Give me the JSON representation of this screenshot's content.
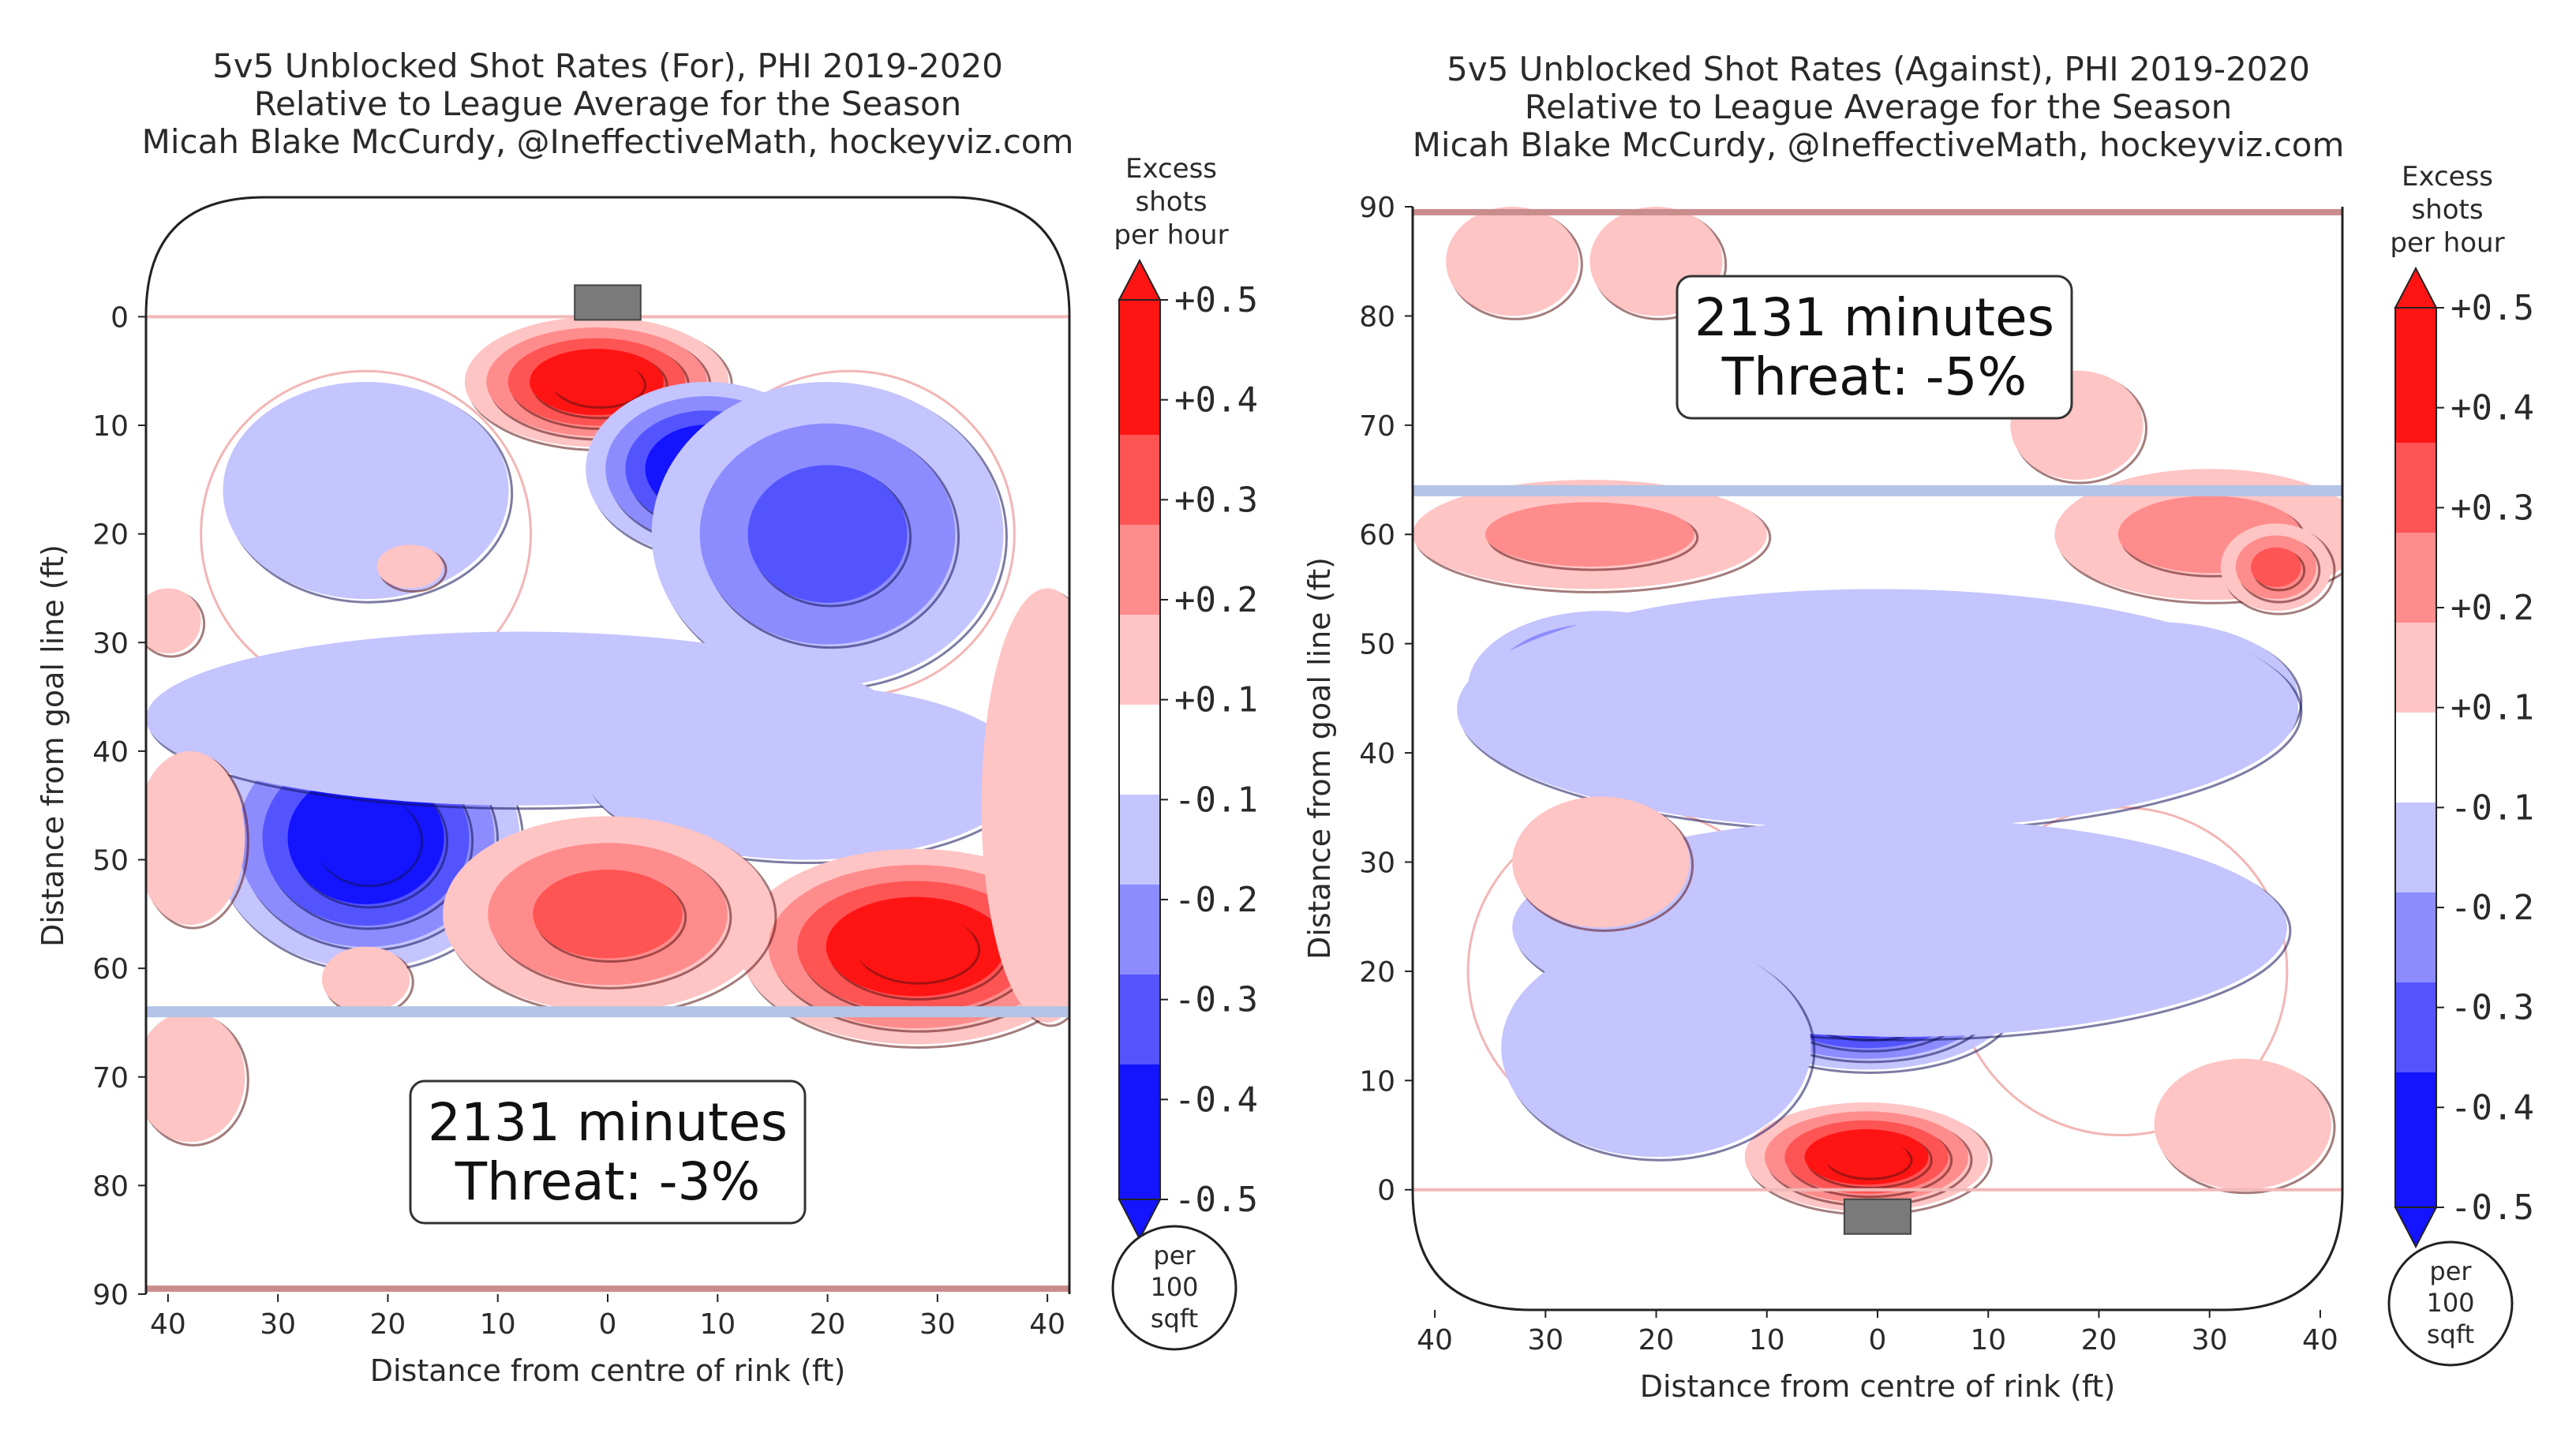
{
  "chart_data": [
    {
      "type": "heatmap",
      "title_lines": [
        "5v5 Unblocked Shot Rates (For), PHI 2019-2020",
        "Relative to League Average for the Season",
        "Micah Blake McCurdy, @IneffectiveMath, hockeyviz.com"
      ],
      "xlabel": "Distance from centre of rink (ft)",
      "ylabel": "Distance from goal line (ft)",
      "x_ticks": [
        "40",
        "30",
        "20",
        "10",
        "0",
        "10",
        "20",
        "30",
        "40"
      ],
      "y_ticks": [
        "0",
        "10",
        "20",
        "30",
        "40",
        "50",
        "60",
        "70",
        "80",
        "90"
      ],
      "xlim": [
        -42,
        42
      ],
      "ylim": [
        -11,
        90
      ],
      "y_direction": "down",
      "net_at_top": true,
      "blue_line_y": 64,
      "goal_line_y": 0,
      "annotation": [
        "2131 minutes",
        "Threat: -3%"
      ],
      "blobs": [
        {
          "x": -1,
          "y": 6,
          "rx": 12,
          "ry": 6,
          "v": 0.5
        },
        {
          "x": 9,
          "y": 14,
          "rx": 11,
          "ry": 8,
          "v": -0.5
        },
        {
          "x": 20,
          "y": 20,
          "rx": 16,
          "ry": 14,
          "v": -0.25
        },
        {
          "x": -22,
          "y": 16,
          "rx": 13,
          "ry": 10,
          "v": -0.12
        },
        {
          "x": -22,
          "y": 48,
          "rx": 14,
          "ry": 12,
          "v": -0.45
        },
        {
          "x": -8,
          "y": 37,
          "rx": 34,
          "ry": 8,
          "v": -0.12
        },
        {
          "x": 18,
          "y": 42,
          "rx": 20,
          "ry": 8,
          "v": -0.15
        },
        {
          "x": 28,
          "y": 58,
          "rx": 16,
          "ry": 9,
          "v": 0.5
        },
        {
          "x": 0,
          "y": 55,
          "rx": 15,
          "ry": 9,
          "v": 0.3
        },
        {
          "x": 40,
          "y": 45,
          "rx": 6,
          "ry": 20,
          "v": 0.15
        },
        {
          "x": -38,
          "y": 70,
          "rx": 5,
          "ry": 6,
          "v": 0.12
        },
        {
          "x": -38,
          "y": 48,
          "rx": 5,
          "ry": 8,
          "v": 0.12
        },
        {
          "x": -22,
          "y": 61,
          "rx": 4,
          "ry": 3,
          "v": 0.12
        },
        {
          "x": -18,
          "y": 23,
          "rx": 3,
          "ry": 2,
          "v": 0.15
        },
        {
          "x": -40,
          "y": 28,
          "rx": 3,
          "ry": 3,
          "v": 0.12
        }
      ]
    },
    {
      "type": "heatmap",
      "title_lines": [
        "5v5 Unblocked Shot Rates (Against), PHI 2019-2020",
        "Relative to League Average for the Season",
        "Micah Blake McCurdy, @IneffectiveMath, hockeyviz.com"
      ],
      "xlabel": "Distance from centre of rink (ft)",
      "ylabel": "Distance from goal line (ft)",
      "x_ticks": [
        "40",
        "30",
        "20",
        "10",
        "0",
        "10",
        "20",
        "30",
        "40"
      ],
      "y_ticks": [
        "0",
        "10",
        "20",
        "30",
        "40",
        "50",
        "60",
        "70",
        "80",
        "90"
      ],
      "xlim": [
        -42,
        42
      ],
      "ylim": [
        -11,
        90
      ],
      "y_direction": "up",
      "net_at_top": false,
      "blue_line_y": 64,
      "goal_line_y": 0,
      "annotation": [
        "2131 minutes",
        "Threat: -5%"
      ],
      "blobs": [
        {
          "x": -1,
          "y": 3,
          "rx": 11,
          "ry": 5,
          "v": 0.5
        },
        {
          "x": -1,
          "y": 17,
          "rx": 13,
          "ry": 6,
          "v": -0.5
        },
        {
          "x": -25,
          "y": 46,
          "rx": 12,
          "ry": 7,
          "v": -0.45
        },
        {
          "x": 25,
          "y": 45,
          "rx": 13,
          "ry": 7,
          "v": -0.35
        },
        {
          "x": 0,
          "y": 44,
          "rx": 38,
          "ry": 11,
          "v": -0.15
        },
        {
          "x": 2,
          "y": 24,
          "rx": 35,
          "ry": 10,
          "v": -0.15
        },
        {
          "x": -20,
          "y": 13,
          "rx": 14,
          "ry": 10,
          "v": -0.12
        },
        {
          "x": -26,
          "y": 60,
          "rx": 16,
          "ry": 5,
          "v": 0.2
        },
        {
          "x": 30,
          "y": 60,
          "rx": 14,
          "ry": 6,
          "v": 0.2
        },
        {
          "x": 36,
          "y": 57,
          "rx": 5,
          "ry": 4,
          "v": 0.3
        },
        {
          "x": -33,
          "y": 85,
          "rx": 6,
          "ry": 5,
          "v": 0.12
        },
        {
          "x": -20,
          "y": 85,
          "rx": 6,
          "ry": 5,
          "v": 0.12
        },
        {
          "x": 18,
          "y": 70,
          "rx": 6,
          "ry": 5,
          "v": 0.12
        },
        {
          "x": -25,
          "y": 30,
          "rx": 8,
          "ry": 6,
          "v": 0.12
        },
        {
          "x": 33,
          "y": 6,
          "rx": 8,
          "ry": 6,
          "v": 0.1
        }
      ]
    }
  ],
  "colorbar": {
    "label_lines": [
      "Excess",
      "shots",
      "per hour"
    ],
    "tick_labels": [
      "+0.5",
      "+0.4",
      "+0.3",
      "+0.2",
      "+0.1",
      "-0.1",
      "-0.2",
      "-0.3",
      "-0.4",
      "-0.5"
    ],
    "colors": [
      "#ff1414",
      "#ff5454",
      "#ff8c8c",
      "#ffc4c4",
      "#ffffff",
      "#c4c4ff",
      "#8c8cff",
      "#5454ff",
      "#1414ff"
    ],
    "unit_lines": [
      "per",
      "100",
      "sqft"
    ]
  }
}
